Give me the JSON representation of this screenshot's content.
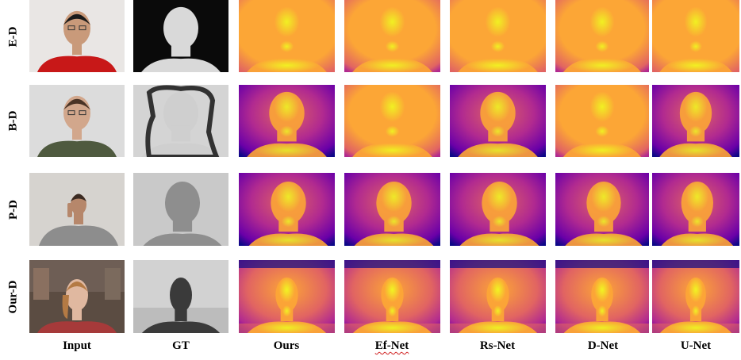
{
  "rows": [
    "E-D",
    "B-D",
    "P-D",
    "Our-D"
  ],
  "columns": [
    "Input",
    "GT",
    "Ours",
    "Ef-Net",
    "Rs-Net",
    "D-Net",
    "U-Net"
  ],
  "depth_colormap": [
    "#0d0887",
    "#6a00a8",
    "#b12a90",
    "#e16462",
    "#fca636",
    "#f0f921"
  ]
}
